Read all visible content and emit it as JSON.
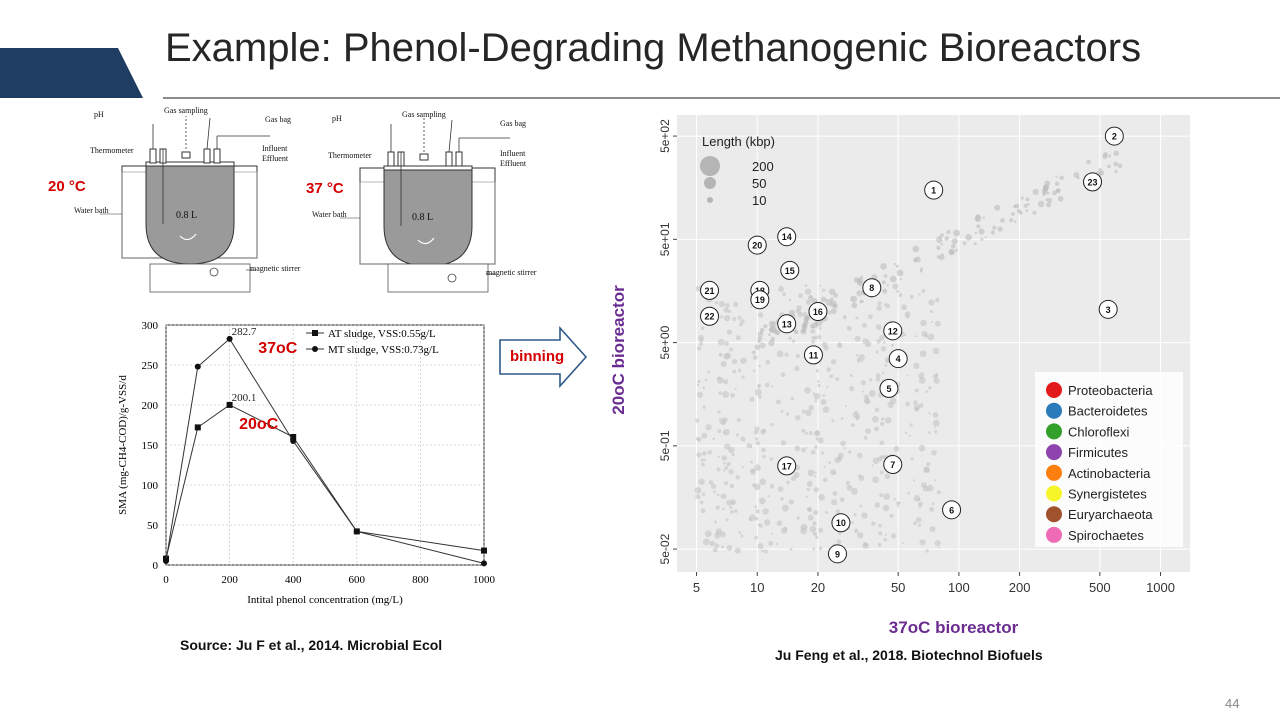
{
  "slide": {
    "title": "Example: Phenol-Degrading Methanogenic Bioreactors",
    "page_number": "44",
    "source_left": "Source: Ju F et al., 2014. Microbial Ecol",
    "source_right": "Ju Feng et al., 2018. Biotechnol Biofuels",
    "binning_label": "binning",
    "colors": {
      "header_bar": "#1f3d63",
      "accent_red": "#d40000",
      "purple": "#6a2c91"
    }
  },
  "reactor_diagrams": [
    {
      "temp_label": "20 °C",
      "labels": {
        "ph": "pH",
        "gas_sampling": "Gas sampling",
        "gas_bag": "Gas bag",
        "thermometer": "Thermometer",
        "influent": "Influent",
        "effluent": "Effluent",
        "water_bath": "Water bath",
        "volume": "0.8 L",
        "stirrer": "magnetic stirrer"
      }
    },
    {
      "temp_label": "37 °C",
      "labels": {
        "ph": "pH",
        "gas_sampling": "Gas sampling",
        "gas_bag": "Gas bag",
        "thermometer": "Thermometer",
        "influent": "Influent",
        "effluent": "Effluent",
        "water_bath": "Water bath",
        "volume": "0.8 L",
        "stirrer": "magnetic stirrer"
      }
    }
  ],
  "chart_data": [
    {
      "type": "line",
      "xlabel": "Intital phenol concentration (mg/L)",
      "ylabel": "SMA (mg-CH4-COD)/g-VSS/d",
      "xlim": [
        0,
        1000
      ],
      "ylim": [
        0,
        300
      ],
      "xticks": [
        0,
        200,
        400,
        600,
        800,
        1000
      ],
      "yticks": [
        0,
        50,
        100,
        150,
        200,
        250,
        300
      ],
      "series": [
        {
          "name": "AT sludge, VSS:0.55g/L",
          "marker": "square",
          "x": [
            0,
            100,
            200,
            400,
            600,
            1000
          ],
          "y": [
            8,
            172,
            200.1,
            160,
            42,
            18
          ]
        },
        {
          "name": "MT sludge, VSS:0.73g/L",
          "marker": "circle",
          "x": [
            0,
            100,
            200,
            400,
            600,
            1000
          ],
          "y": [
            5,
            248,
            282.7,
            155,
            42,
            2
          ]
        }
      ],
      "annotations": [
        {
          "text": "282.7",
          "x": 200,
          "y": 282.7
        },
        {
          "text": "200.1",
          "x": 200,
          "y": 200.1
        },
        {
          "text": "37oC",
          "x": 290,
          "y": 265
        },
        {
          "text": "20oC",
          "x": 230,
          "y": 170
        }
      ]
    },
    {
      "type": "scatter",
      "scale": "log",
      "xlabel": "37oC bioreactor",
      "ylabel": "20oC bioreactor",
      "xlim": [
        4,
        1400
      ],
      "ylim": [
        0.03,
        800
      ],
      "xticks": [
        "5",
        "10",
        "20",
        "50",
        "100",
        "200",
        "500",
        "1000"
      ],
      "yticks": [
        "5e-02",
        "5e-01",
        "5e+00",
        "5e+01",
        "5e+02"
      ],
      "size_legend": {
        "title": "Length (kbp)",
        "entries": [
          "200",
          "50",
          "10"
        ]
      },
      "legend_position": "bottom-right",
      "legend": [
        {
          "name": "Proteobacteria",
          "color": "#e31a1c"
        },
        {
          "name": "Bacteroidetes",
          "color": "#2b7bba"
        },
        {
          "name": "Chloroflexi",
          "color": "#33a02c"
        },
        {
          "name": "Firmicutes",
          "color": "#8e44ad"
        },
        {
          "name": "Actinobacteria",
          "color": "#ff7f0e"
        },
        {
          "name": "Synergistetes",
          "color": "#f5f52a"
        },
        {
          "name": "Euryarchaeota",
          "color": "#a0522d"
        },
        {
          "name": "Spirochaetes",
          "color": "#f06bb5"
        }
      ],
      "bins": [
        {
          "id": "1",
          "x": 75,
          "y": 150
        },
        {
          "id": "2",
          "x": 590,
          "y": 500
        },
        {
          "id": "3",
          "x": 550,
          "y": 10.5
        },
        {
          "id": "4",
          "x": 50,
          "y": 3.5
        },
        {
          "id": "5",
          "x": 45,
          "y": 1.8
        },
        {
          "id": "6",
          "x": 92,
          "y": 0.12
        },
        {
          "id": "7",
          "x": 47,
          "y": 0.33
        },
        {
          "id": "8",
          "x": 37,
          "y": 17
        },
        {
          "id": "9",
          "x": 25,
          "y": 0.045
        },
        {
          "id": "10",
          "x": 26,
          "y": 0.09
        },
        {
          "id": "11",
          "x": 19,
          "y": 3.8
        },
        {
          "id": "12",
          "x": 47,
          "y": 6.5
        },
        {
          "id": "13",
          "x": 14,
          "y": 7.6
        },
        {
          "id": "14",
          "x": 14,
          "y": 53
        },
        {
          "id": "15",
          "x": 14.5,
          "y": 25
        },
        {
          "id": "16",
          "x": 20,
          "y": 10
        },
        {
          "id": "17",
          "x": 14,
          "y": 0.32
        },
        {
          "id": "18",
          "x": 10.3,
          "y": 16
        },
        {
          "id": "19",
          "x": 10.3,
          "y": 13
        },
        {
          "id": "20",
          "x": 10,
          "y": 44
        },
        {
          "id": "21",
          "x": 5.8,
          "y": 16
        },
        {
          "id": "22",
          "x": 5.8,
          "y": 9
        },
        {
          "id": "23",
          "x": 460,
          "y": 180
        }
      ]
    }
  ]
}
